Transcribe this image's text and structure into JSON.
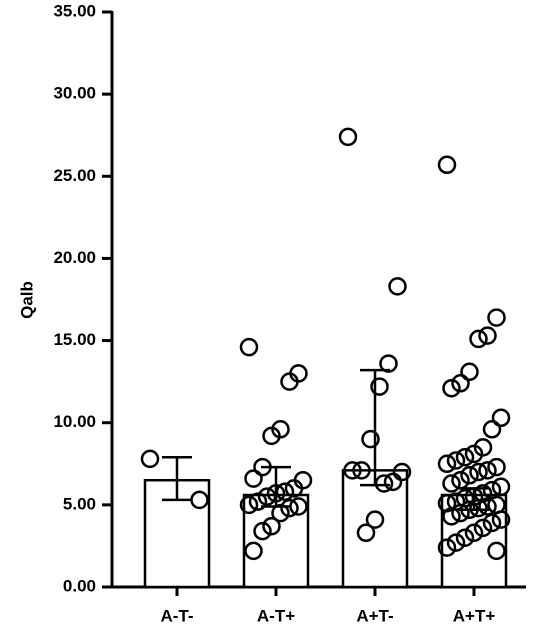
{
  "chart_data": {
    "type": "bar",
    "y_label": "Qalb",
    "categories": [
      "A-T-",
      "A-T+",
      "A+T-",
      "A+T+"
    ],
    "values": [
      6.5,
      5.6,
      7.1,
      5.6
    ],
    "error_low": [
      5.3,
      4.9,
      6.2,
      4.7
    ],
    "error_high": [
      7.9,
      7.3,
      13.2,
      6.0
    ],
    "points": [
      [
        7.8,
        5.3
      ],
      [
        14.6,
        13.0,
        12.5,
        9.6,
        9.2,
        7.3,
        6.6,
        6.5,
        6.0,
        5.8,
        5.7,
        5.5,
        5.2,
        5.0,
        4.9,
        4.8,
        4.5,
        3.7,
        3.4,
        2.2
      ],
      [
        27.4,
        18.3,
        13.6,
        12.2,
        9.0,
        7.1,
        7.1,
        7.0,
        6.4,
        6.3,
        4.1,
        3.3
      ],
      [
        25.7,
        16.4,
        15.3,
        15.1,
        13.1,
        12.4,
        12.1,
        10.3,
        9.6,
        8.5,
        8.1,
        7.9,
        7.7,
        7.5,
        7.3,
        7.1,
        7.0,
        6.8,
        6.5,
        6.3,
        6.1,
        5.9,
        5.7,
        5.5,
        5.4,
        5.2,
        5.1,
        5.0,
        4.9,
        4.8,
        4.7,
        4.5,
        4.3,
        4.1,
        3.9,
        3.6,
        3.3,
        3.0,
        2.7,
        2.4,
        2.2
      ]
    ],
    "color": "#ffffff",
    "ylim": [
      0,
      35
    ],
    "yticks": [
      {
        "value": 0,
        "label": "0.00"
      },
      {
        "value": 5,
        "label": "5.00"
      },
      {
        "value": 10,
        "label": "10.00"
      },
      {
        "value": 15,
        "label": "15.00"
      },
      {
        "value": 20,
        "label": "20.00"
      },
      {
        "value": 25,
        "label": "25.00"
      },
      {
        "value": 30,
        "label": "30.00"
      },
      {
        "value": 35,
        "label": "35.00"
      }
    ],
    "grid": false
  }
}
